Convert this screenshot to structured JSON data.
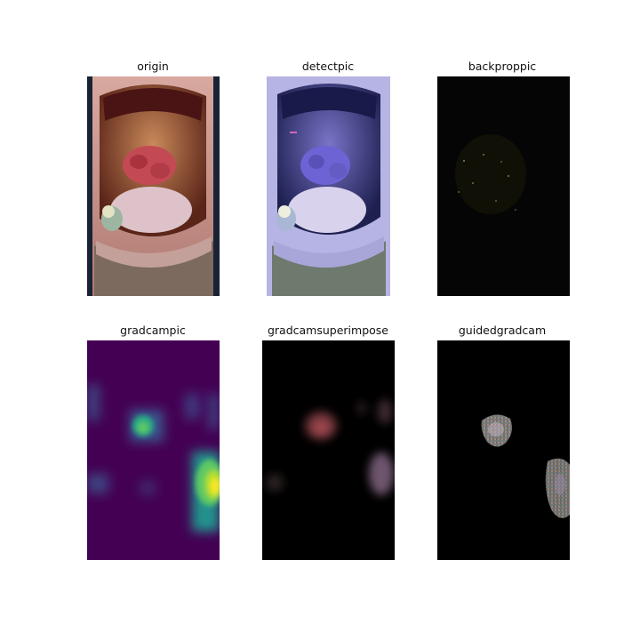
{
  "figure": {
    "panels": [
      {
        "key": "origin",
        "title": "origin"
      },
      {
        "key": "detect",
        "title": "detectpic"
      },
      {
        "key": "backprop",
        "title": "backproppic"
      },
      {
        "key": "gradcam",
        "title": "gradcampic"
      },
      {
        "key": "superimpose",
        "title": "gradcamsuperimpose"
      },
      {
        "key": "guided",
        "title": "guidedgradcam"
      }
    ]
  }
}
